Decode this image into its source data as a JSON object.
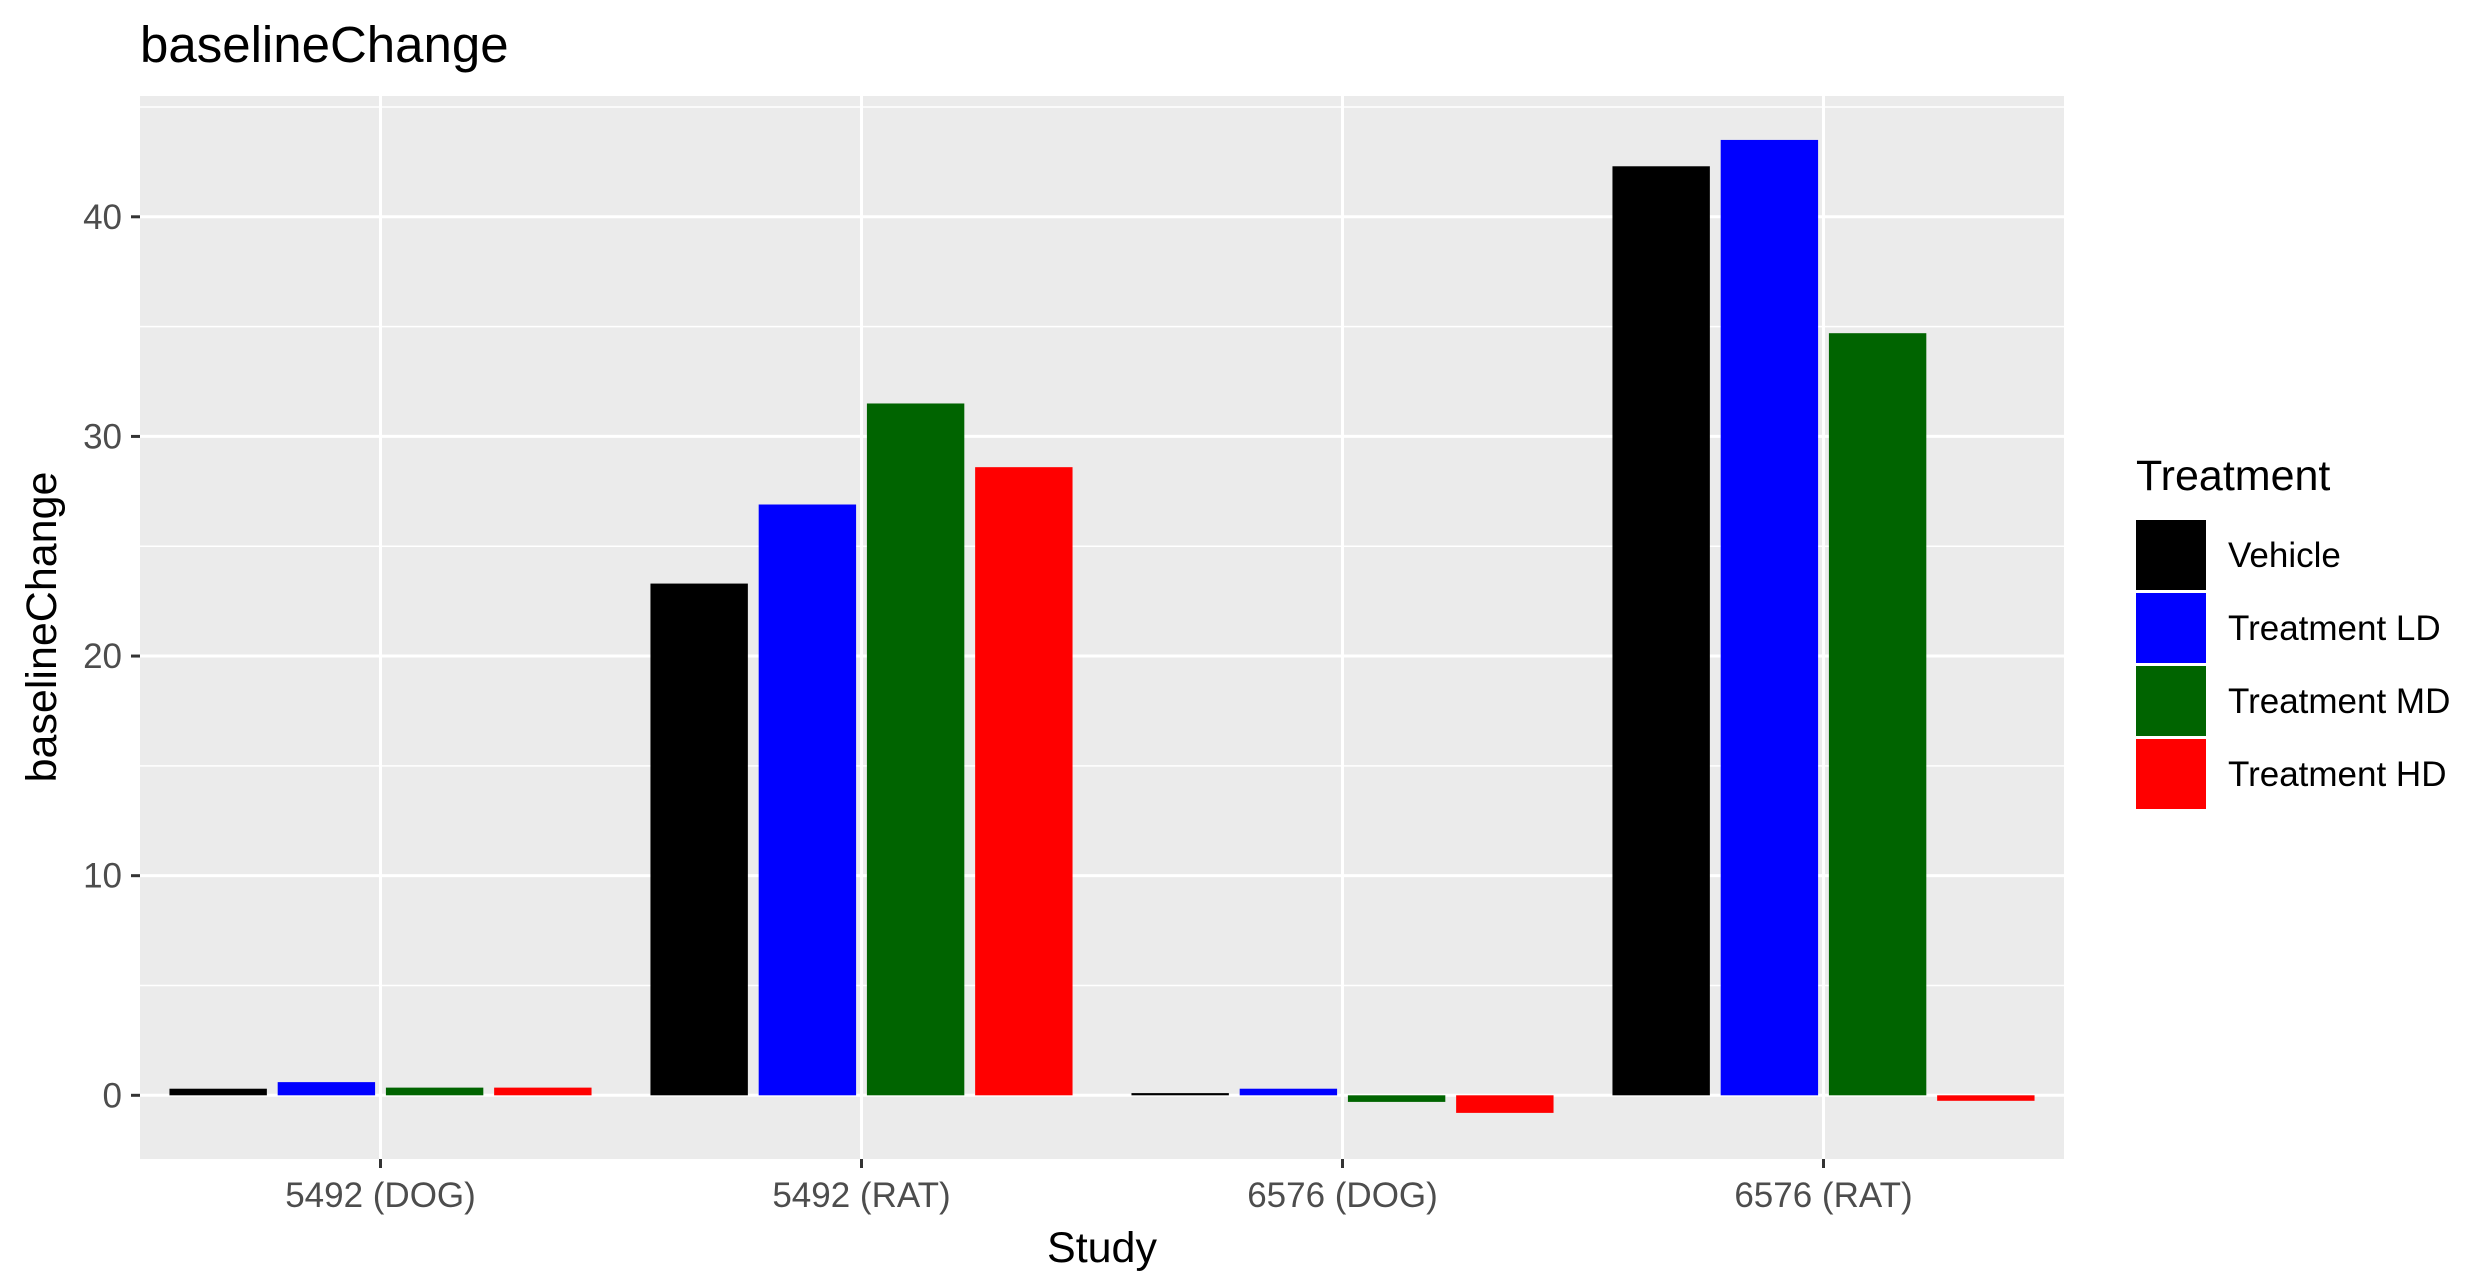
{
  "chart_data": {
    "type": "bar",
    "title": "baselineChange",
    "xlabel": "Study",
    "ylabel": "baselineChange",
    "categories": [
      "5492 (DOG)",
      "5492 (RAT)",
      "6576 (DOG)",
      "6576 (RAT)"
    ],
    "series": [
      {
        "name": "Vehicle",
        "color": "#000000",
        "values": [
          0.3,
          23.3,
          0.1,
          42.3
        ]
      },
      {
        "name": "Treatment LD",
        "color": "#0000ff",
        "values": [
          0.6,
          26.9,
          0.3,
          43.5
        ]
      },
      {
        "name": "Treatment MD",
        "color": "#006400",
        "values": [
          0.35,
          31.5,
          -0.3,
          34.7
        ]
      },
      {
        "name": "Treatment HD",
        "color": "#ff0000",
        "values": [
          0.35,
          28.6,
          -0.8,
          -0.25
        ]
      }
    ],
    "ylim": [
      -2.9,
      45.5
    ],
    "yticks": [
      0,
      10,
      20,
      30,
      40
    ],
    "grid": true,
    "panel_background": "#ebebeb",
    "legend": {
      "title": "Treatment",
      "position": "right"
    }
  }
}
